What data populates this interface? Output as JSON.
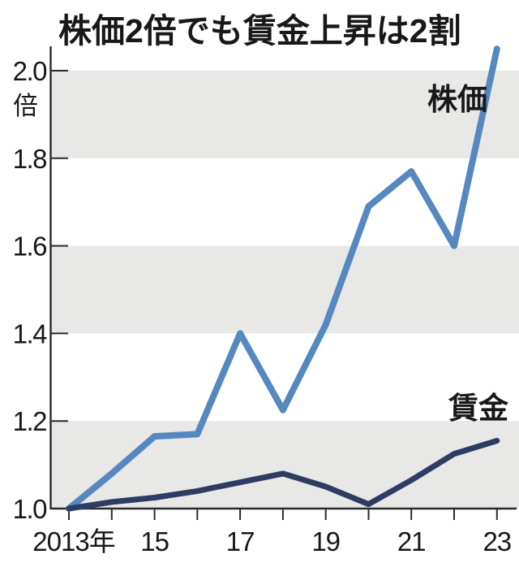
{
  "title": "株価2倍でも賃金上昇は2割",
  "chart_data": {
    "type": "line",
    "title": "株価2倍でも賃金上昇は2割",
    "unit_label": "倍",
    "x": [
      2013,
      2014,
      2015,
      2016,
      2017,
      2018,
      2019,
      2020,
      2021,
      2022,
      2023
    ],
    "x_tick_labels": [
      {
        "year": 2013,
        "label": "2013年"
      },
      {
        "year": 2015,
        "label": "15"
      },
      {
        "year": 2017,
        "label": "17"
      },
      {
        "year": 2019,
        "label": "19"
      },
      {
        "year": 2021,
        "label": "21"
      },
      {
        "year": 2023,
        "label": "23"
      }
    ],
    "y_ticks": [
      1.0,
      1.2,
      1.4,
      1.6,
      1.8,
      2.0
    ],
    "y_tick_labels": [
      "1.0",
      "1.2",
      "1.4",
      "1.6",
      "1.8",
      "2.0"
    ],
    "ylim": [
      1.0,
      2.07
    ],
    "bands": [
      [
        1.0,
        1.2
      ],
      [
        1.4,
        1.6
      ],
      [
        1.8,
        2.0
      ]
    ],
    "band_color": "#e8e8e6",
    "axis_color": "#2a2a2a",
    "grid": "alternating horizontal shaded bands",
    "legend_position": "inline labels near lines",
    "series": [
      {
        "name": "株価",
        "color": "#5588bf",
        "values": [
          1.0,
          1.08,
          1.165,
          1.17,
          1.4,
          1.225,
          1.42,
          1.69,
          1.77,
          1.6,
          2.05
        ]
      },
      {
        "name": "賃金",
        "color": "#2e3b63",
        "values": [
          1.0,
          1.015,
          1.025,
          1.04,
          1.06,
          1.08,
          1.05,
          1.01,
          1.065,
          1.125,
          1.155
        ]
      }
    ]
  }
}
